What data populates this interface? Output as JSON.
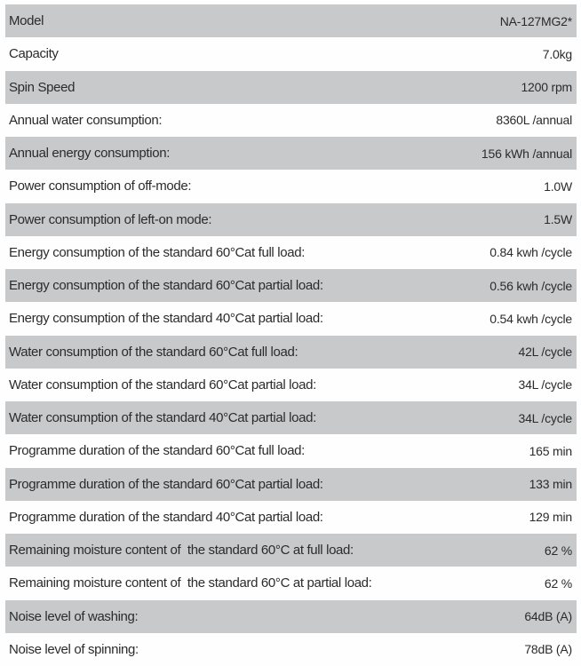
{
  "colors": {
    "shaded_row": "#c8c9ca",
    "text": "#2b2b2b",
    "background": "#fefefe"
  },
  "table": {
    "rows": [
      {
        "label": "Model",
        "value": "NA-127MG2*"
      },
      {
        "label": "Capacity",
        "value": "7.0kg"
      },
      {
        "label": "Spin Speed",
        "value": "1200 rpm"
      },
      {
        "label": "Annual water consumption:",
        "value": "8360L /annual"
      },
      {
        "label": "Annual energy consumption:",
        "value": "156 kWh /annual"
      },
      {
        "label": "Power consumption of off-mode:",
        "value": "1.0W"
      },
      {
        "label": "Power consumption of left-on mode:",
        "value": "1.5W"
      },
      {
        "label": "Energy consumption of the standard 60°Cat full load:",
        "value": "0.84 kwh /cycle"
      },
      {
        "label": "Energy consumption of the standard 60°Cat partial load:",
        "value": "0.56 kwh /cycle"
      },
      {
        "label": "Energy consumption of the standard 40°Cat partial load:",
        "value": "0.54 kwh /cycle"
      },
      {
        "label": "Water consumption of the standard 60°Cat full load:",
        "value": "42L /cycle"
      },
      {
        "label": "Water consumption of the standard 60°Cat partial load:",
        "value": "34L /cycle"
      },
      {
        "label": "Water consumption of the standard 40°Cat partial load:",
        "value": "34L /cycle"
      },
      {
        "label": "Programme duration of the standard 60°Cat full load:",
        "value": "165 min"
      },
      {
        "label": "Programme duration of the standard 60°Cat partial load:",
        "value": "133 min"
      },
      {
        "label": "Programme duration of the standard 40°Cat partial load:",
        "value": "129 min"
      },
      {
        "label": "Remaining moisture content of  the standard 60°C at full load:",
        "value": "62 %"
      },
      {
        "label": "Remaining moisture content of  the standard 60°C at partial load:",
        "value": "62 %"
      },
      {
        "label": "Noise level of washing:",
        "value": "64dB (A)"
      },
      {
        "label": "Noise level of spinning:",
        "value": "78dB (A)"
      }
    ]
  }
}
